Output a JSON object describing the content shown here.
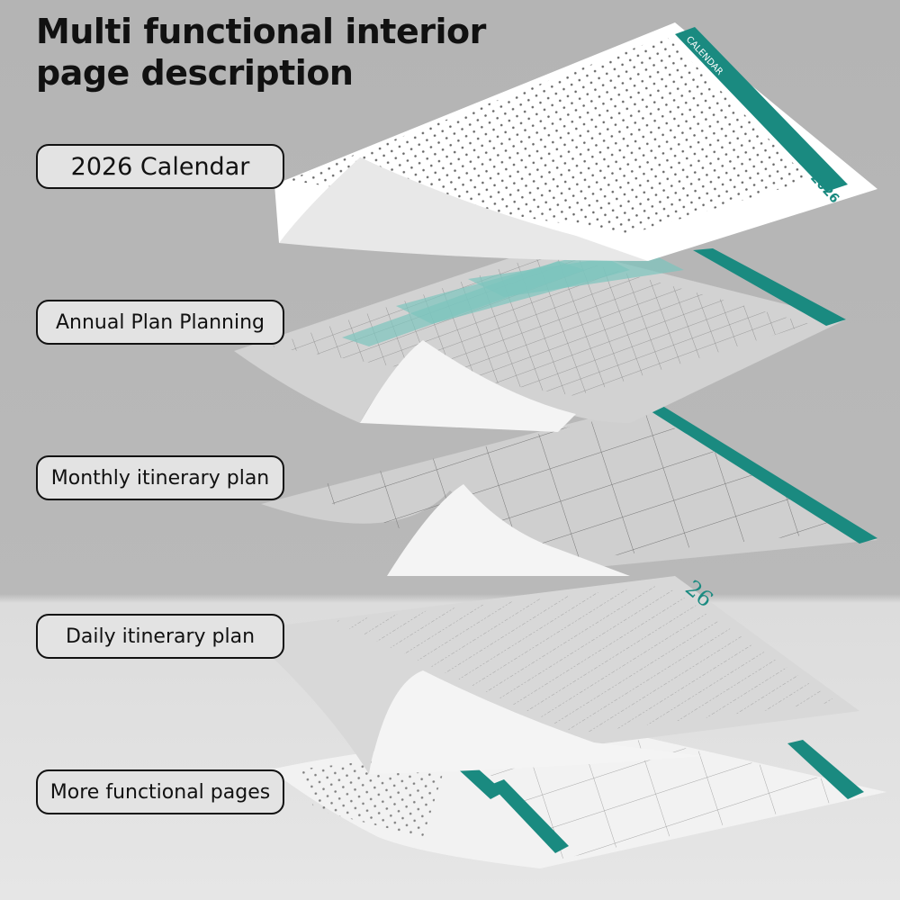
{
  "title_line1": "Multi functional interior",
  "title_line2": "page description",
  "labels": [
    "2026 Calendar",
    "Annual Plan Planning",
    "Monthly itinerary plan",
    "Daily itinerary plan",
    "More functional pages"
  ],
  "page_text": {
    "calendar_header": "CALENDAR",
    "calendar_year": "2026"
  },
  "colors": {
    "accent_teal": "#1a8a80",
    "background": "#b5b5b5",
    "label_fill": "#e3e3e3"
  }
}
